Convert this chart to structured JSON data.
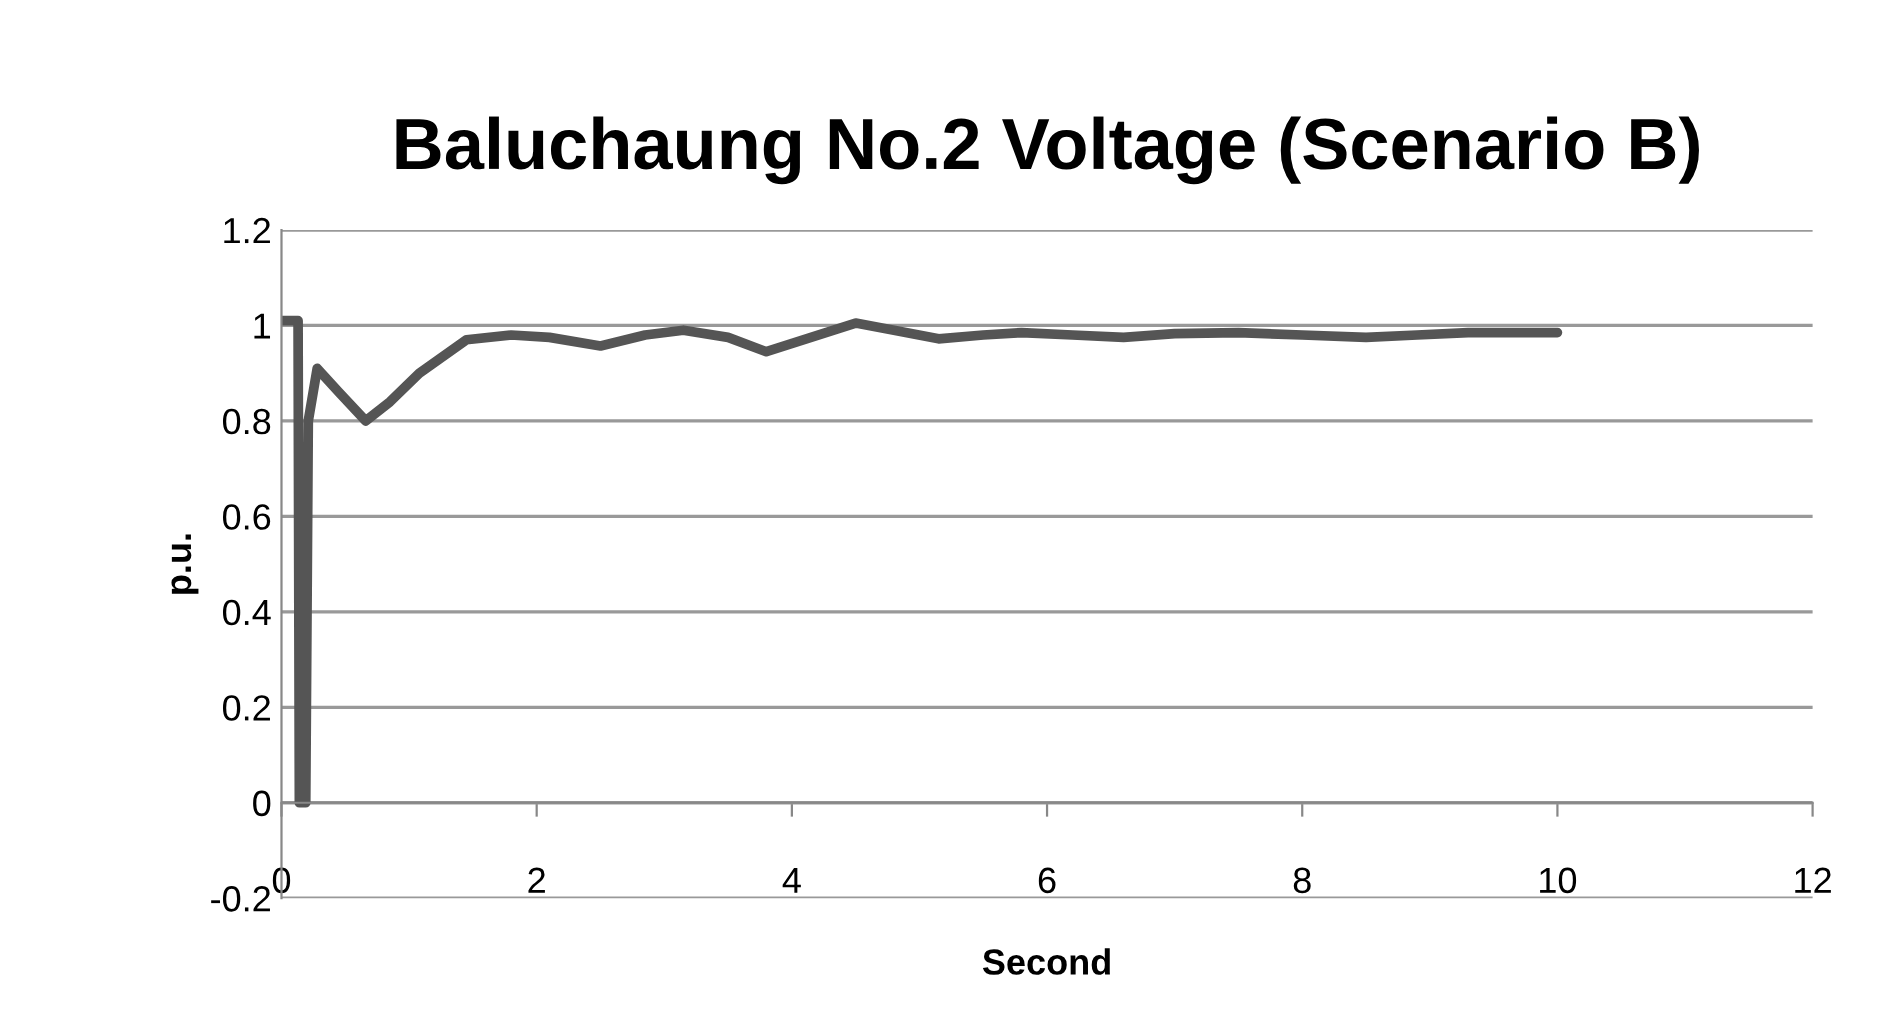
{
  "chart_data": {
    "type": "line",
    "title": "Baluchaung No.2 Voltage (Scenario B)",
    "xlabel": "Second",
    "ylabel": "p.u.",
    "series": [
      {
        "color": "#555555",
        "line_style": "solid",
        "x": [
          0,
          0.13,
          0.14,
          0.19,
          0.21,
          0.28,
          0.45,
          0.66,
          0.85,
          1.08,
          1.45,
          1.8,
          2.1,
          2.5,
          2.85,
          3.15,
          3.5,
          3.8,
          4.15,
          4.5,
          4.8,
          5.15,
          5.5,
          5.8,
          6.2,
          6.6,
          7.0,
          7.5,
          8.0,
          8.5,
          8.9,
          9.3,
          10
        ],
        "values": [
          1.01,
          1.01,
          0,
          0,
          0.8,
          0.91,
          0.86,
          0.8,
          0.84,
          0.9,
          0.97,
          0.98,
          0.975,
          0.957,
          0.98,
          0.99,
          0.975,
          0.945,
          0.975,
          1.005,
          0.99,
          0.972,
          0.98,
          0.985,
          0.98,
          0.975,
          0.983,
          0.985,
          0.98,
          0.975,
          0.98,
          0.985,
          0.985
        ]
      }
    ],
    "xlim": [
      0,
      12
    ],
    "xticks": [
      0,
      2,
      4,
      6,
      8,
      10,
      12
    ],
    "ylim": [
      -0.2,
      1.2
    ],
    "yticks": [
      -0.2,
      0,
      0.2,
      0.4,
      0.6,
      0.8,
      1,
      1.2
    ],
    "grid": "y",
    "marker": "none"
  }
}
